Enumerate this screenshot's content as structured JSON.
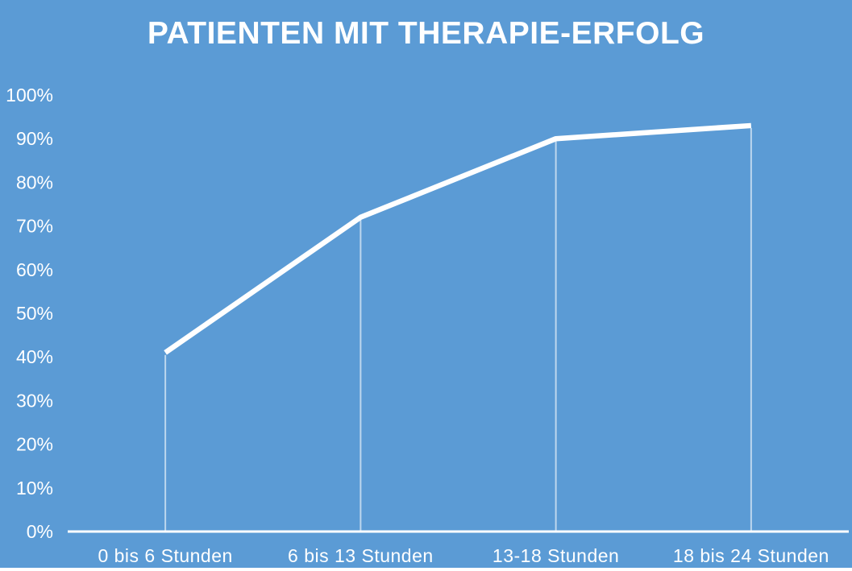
{
  "page": {
    "background_color": "#5B9BD5",
    "text_color": "#FFFFFF"
  },
  "chart_data": {
    "type": "line",
    "title": "PATIENTEN MIT THERAPIE-ERFOLG",
    "categories": [
      "0 bis 6 Stunden",
      "6 bis 13 Stunden",
      "13-18 Stunden",
      "18 bis 24 Stunden"
    ],
    "values": [
      41,
      72,
      90,
      93
    ],
    "unit": "%",
    "xlabel": "",
    "ylabel": "",
    "ylim": [
      0,
      100
    ],
    "ytick_step": 10,
    "ytick_labels": [
      "0%",
      "10%",
      "20%",
      "30%",
      "40%",
      "50%",
      "60%",
      "70%",
      "80%",
      "90%",
      "100%"
    ],
    "grid": false,
    "legend": false,
    "line_color": "#FFFFFF",
    "axis_color": "#FFFFFF",
    "drop_line_color": "rgba(255,255,255,0.6)",
    "drop_lines": true
  }
}
